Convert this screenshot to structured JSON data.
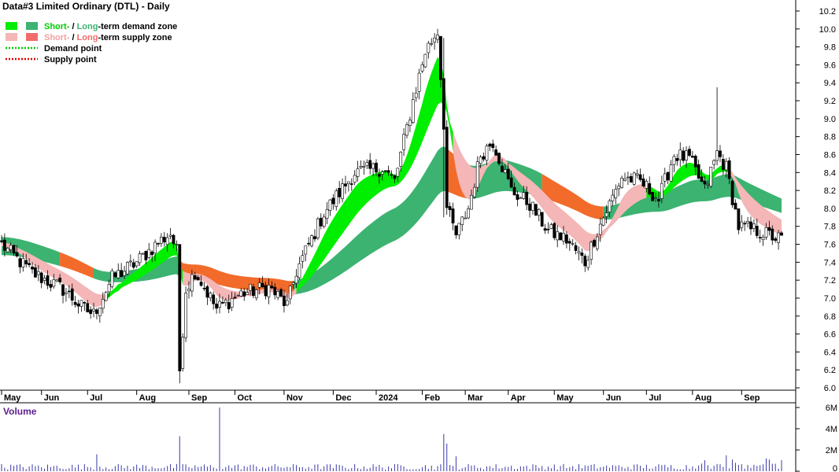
{
  "chart_data": {
    "type": "candlestick",
    "title": "Data#3 Limited Ordinary (DTL) - Daily",
    "legend": {
      "placement": "top-left",
      "items": [
        {
          "prefix": "Short-",
          "sep": " / ",
          "mid": "Long",
          "suffix": "-term demand zone",
          "swatches": [
            "#00ee00",
            "#3cb371"
          ],
          "prefixColor": "#00cc00",
          "midColor": "#3cb371"
        },
        {
          "prefix": "Short-",
          "sep": " / ",
          "mid": "Long",
          "suffix": "-term supply zone",
          "swatches": [
            "#f4b6b6",
            "#f26b6b"
          ],
          "prefixColor": "#f4a0a0",
          "midColor": "#f26b6b"
        },
        {
          "label": "Demand point",
          "lineColor": "#00cc00"
        },
        {
          "label": "Supply point",
          "lineColor": "#dd0000"
        }
      ]
    },
    "y_axis": {
      "min": 6.0,
      "max": 10.2,
      "ticks": [
        "6.0",
        "6.2",
        "6.4",
        "6.6",
        "6.8",
        "7.0",
        "7.2",
        "7.4",
        "7.6",
        "7.8",
        "8.0",
        "8.2",
        "8.4",
        "8.6",
        "8.8",
        "9.0",
        "9.2",
        "9.4",
        "9.6",
        "9.8",
        "10.0",
        "10.2"
      ]
    },
    "volume_axis": {
      "label": "Volume",
      "min": 0,
      "max": 6000000,
      "ticks": [
        "0",
        "2M",
        "4M",
        "6M"
      ]
    },
    "x_labels": [
      "May",
      "Jun",
      "Jul",
      "Aug",
      "Sep",
      "Oct",
      "Nov",
      "Dec",
      "2024",
      "Feb",
      "Mar",
      "Apr",
      "May",
      "Jun",
      "Jul",
      "Aug",
      "Sep"
    ],
    "x_label_index": [
      0,
      13,
      28,
      44,
      61,
      76,
      92,
      108,
      122,
      137,
      151,
      165,
      180,
      196,
      210,
      225,
      241
    ],
    "n_bars": 255,
    "price_anchors": [
      [
        0,
        7.6
      ],
      [
        3,
        7.5
      ],
      [
        10,
        7.28
      ],
      [
        20,
        7.1
      ],
      [
        26,
        6.9
      ],
      [
        30,
        6.82
      ],
      [
        36,
        7.22
      ],
      [
        44,
        7.4
      ],
      [
        51,
        7.62
      ],
      [
        55,
        7.72
      ],
      [
        57,
        7.52
      ],
      [
        58,
        6.2
      ],
      [
        60,
        7.1
      ],
      [
        63,
        7.3
      ],
      [
        70,
        6.88
      ],
      [
        78,
        7.05
      ],
      [
        87,
        7.12
      ],
      [
        93,
        6.92
      ],
      [
        96,
        7.3
      ],
      [
        105,
        7.95
      ],
      [
        115,
        8.4
      ],
      [
        124,
        8.45
      ],
      [
        128,
        8.3
      ],
      [
        134,
        9.2
      ],
      [
        138,
        9.75
      ],
      [
        142,
        9.98
      ],
      [
        144,
        8.95
      ],
      [
        145,
        8.0
      ],
      [
        148,
        7.7
      ],
      [
        152,
        8.0
      ],
      [
        156,
        8.6
      ],
      [
        160,
        8.75
      ],
      [
        166,
        8.2
      ],
      [
        172,
        8.05
      ],
      [
        178,
        7.75
      ],
      [
        184,
        7.65
      ],
      [
        190,
        7.4
      ],
      [
        194,
        7.75
      ],
      [
        198,
        8.05
      ],
      [
        202,
        8.35
      ],
      [
        208,
        8.3
      ],
      [
        214,
        8.1
      ],
      [
        219,
        8.6
      ],
      [
        224,
        8.55
      ],
      [
        229,
        8.2
      ],
      [
        233,
        8.62
      ],
      [
        236,
        8.45
      ],
      [
        240,
        7.8
      ],
      [
        246,
        7.75
      ],
      [
        254,
        7.65
      ]
    ],
    "short_demand_segments": [
      [
        34,
        58
      ],
      [
        96,
        146
      ],
      [
        210,
        236
      ]
    ],
    "short_supply_segments": [
      [
        0,
        33
      ],
      [
        59,
        95
      ],
      [
        147,
        209
      ],
      [
        237,
        254
      ]
    ],
    "long_demand_segments": [
      [
        0,
        18
      ],
      [
        30,
        57
      ],
      [
        95,
        144
      ],
      [
        151,
        175
      ],
      [
        196,
        254
      ]
    ],
    "long_supply_segments": [
      [
        19,
        29
      ],
      [
        58,
        94
      ],
      [
        145,
        150
      ],
      [
        176,
        195
      ]
    ],
    "volume_spikes": [
      [
        31,
        1.6
      ],
      [
        58,
        3.3
      ],
      [
        71,
        6.0
      ],
      [
        144,
        3.5
      ],
      [
        145,
        2.6
      ],
      [
        148,
        1.4
      ],
      [
        236,
        1.5
      ],
      [
        249,
        1.2
      ]
    ]
  }
}
